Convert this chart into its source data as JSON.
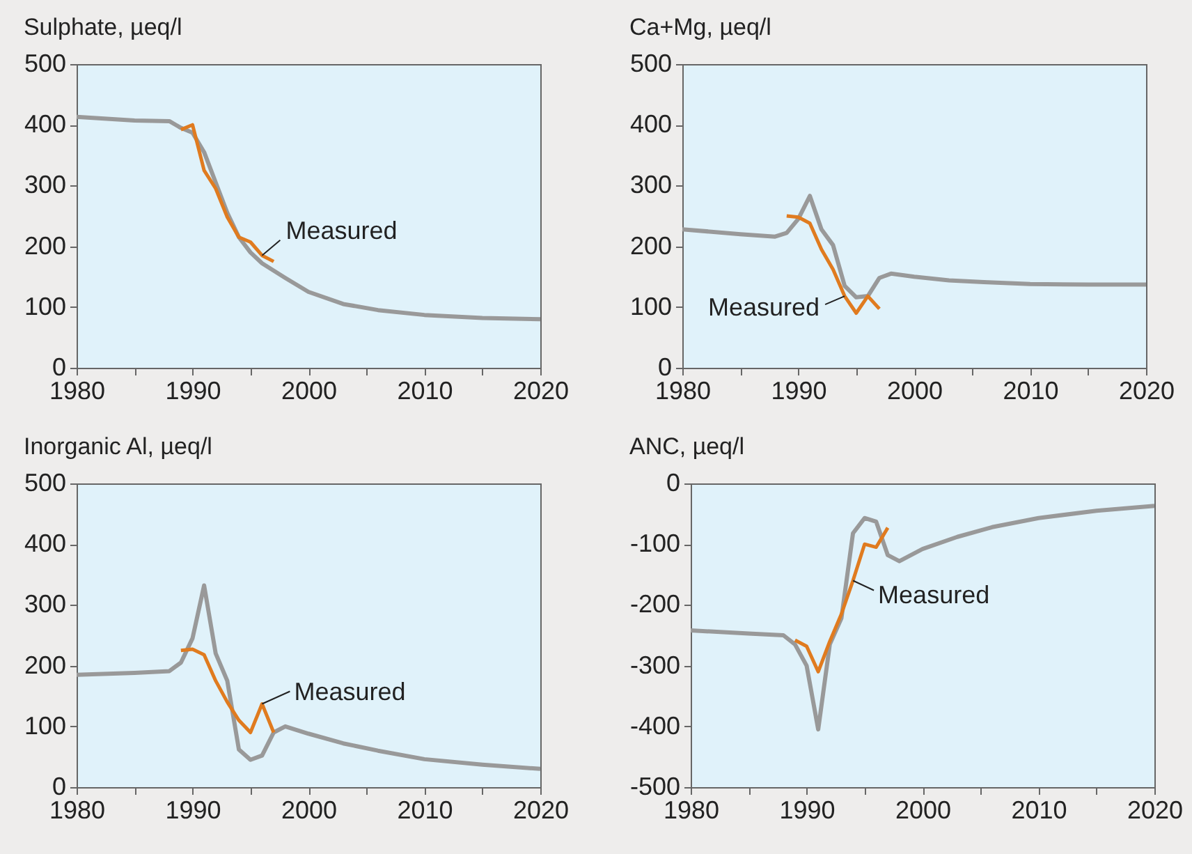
{
  "chart_data": [
    {
      "type": "line",
      "title": "Sulphate, µeq/l",
      "xlim": [
        1980,
        2020
      ],
      "ylim": [
        0,
        500
      ],
      "xticks": [
        1980,
        {
          "value": 1985,
          "label": null
        },
        1990,
        {
          "value": 1995,
          "label": null
        },
        2000,
        {
          "value": 2005,
          "label": null
        },
        2010,
        {
          "value": 2015,
          "label": null
        },
        2020
      ],
      "yticks": [
        0,
        100,
        200,
        300,
        400,
        500
      ],
      "series": [
        {
          "color": "#999999",
          "x": [
            1980,
            1985,
            1988,
            1989,
            1990,
            1991,
            1992,
            1993,
            1994,
            1995,
            1996,
            1997,
            1998,
            2000,
            2003,
            2006,
            2010,
            2015,
            2020
          ],
          "values": [
            413,
            407,
            406,
            395,
            387,
            355,
            305,
            255,
            215,
            190,
            172,
            160,
            148,
            125,
            105,
            95,
            87,
            82,
            80
          ]
        },
        {
          "name": "Measured",
          "color": "#e07b1f",
          "x": [
            1989,
            1990,
            1991,
            1992,
            1993,
            1994,
            1995,
            1996,
            1997
          ],
          "values": [
            392,
            400,
            325,
            295,
            248,
            215,
            207,
            185,
            175
          ]
        }
      ]
    },
    {
      "type": "line",
      "title": "Ca+Mg, µeq/l",
      "xlim": [
        1980,
        2020
      ],
      "ylim": [
        0,
        500
      ],
      "xticks": [
        1980,
        {
          "value": 1985,
          "label": null
        },
        1990,
        {
          "value": 1995,
          "label": null
        },
        2000,
        {
          "value": 2005,
          "label": null
        },
        2010,
        {
          "value": 2015,
          "label": null
        },
        2020
      ],
      "yticks": [
        0,
        100,
        200,
        300,
        400,
        500
      ],
      "series": [
        {
          "color": "#999999",
          "x": [
            1980,
            1985,
            1988,
            1989,
            1990,
            1991,
            1992,
            1993,
            1994,
            1995,
            1996,
            1997,
            1998,
            2000,
            2003,
            2006,
            2010,
            2015,
            2020
          ],
          "values": [
            228,
            220,
            216,
            222,
            245,
            283,
            228,
            202,
            135,
            116,
            118,
            148,
            155,
            150,
            144,
            141,
            138,
            137,
            137
          ]
        },
        {
          "name": "Measured",
          "color": "#e07b1f",
          "x": [
            1989,
            1990,
            1991,
            1992,
            1993,
            1994,
            1995,
            1996,
            1997
          ],
          "values": [
            250,
            248,
            238,
            195,
            162,
            118,
            90,
            118,
            97
          ]
        }
      ]
    },
    {
      "type": "line",
      "title": "Inorganic Al, µeq/l",
      "xlim": [
        1980,
        2020
      ],
      "ylim": [
        0,
        500
      ],
      "xticks": [
        1980,
        {
          "value": 1985,
          "label": null
        },
        1990,
        {
          "value": 1995,
          "label": null
        },
        2000,
        {
          "value": 2005,
          "label": null
        },
        2010,
        {
          "value": 2015,
          "label": null
        },
        2020
      ],
      "yticks": [
        0,
        100,
        200,
        300,
        400,
        500
      ],
      "series": [
        {
          "color": "#999999",
          "x": [
            1980,
            1985,
            1988,
            1989,
            1990,
            1991,
            1992,
            1993,
            1994,
            1995,
            1996,
            1997,
            1998,
            2000,
            2003,
            2006,
            2010,
            2015,
            2020
          ],
          "values": [
            185,
            188,
            191,
            205,
            245,
            332,
            220,
            175,
            62,
            45,
            52,
            90,
            100,
            88,
            72,
            60,
            46,
            37,
            30
          ]
        },
        {
          "name": "Measured",
          "color": "#e07b1f",
          "x": [
            1989,
            1990,
            1991,
            1992,
            1993,
            1994,
            1995,
            1996,
            1997
          ],
          "values": [
            225,
            227,
            218,
            175,
            140,
            110,
            90,
            137,
            90
          ]
        }
      ]
    },
    {
      "type": "line",
      "title": "ANC, µeq/l",
      "xlim": [
        1980,
        2020
      ],
      "ylim": [
        -500,
        0
      ],
      "xticks": [
        1980,
        {
          "value": 1985,
          "label": null
        },
        1990,
        {
          "value": 1995,
          "label": null
        },
        2000,
        {
          "value": 2005,
          "label": null
        },
        2010,
        {
          "value": 2015,
          "label": null
        },
        2020
      ],
      "yticks": [
        -500,
        -400,
        -300,
        -200,
        -100,
        0
      ],
      "series": [
        {
          "color": "#999999",
          "x": [
            1980,
            1985,
            1988,
            1989,
            1990,
            1991,
            1992,
            1993,
            1994,
            1995,
            1996,
            1997,
            1998,
            2000,
            2003,
            2006,
            2010,
            2015,
            2020
          ],
          "values": [
            -242,
            -247,
            -250,
            -265,
            -300,
            -405,
            -265,
            -222,
            -82,
            -57,
            -63,
            -118,
            -128,
            -108,
            -88,
            -72,
            -57,
            -45,
            -37
          ]
        },
        {
          "name": "Measured",
          "color": "#e07b1f",
          "x": [
            1989,
            1990,
            1991,
            1992,
            1993,
            1994,
            1995,
            1996,
            1997
          ],
          "values": [
            -258,
            -268,
            -310,
            -260,
            -215,
            -160,
            -100,
            -105,
            -73
          ]
        }
      ]
    }
  ]
}
